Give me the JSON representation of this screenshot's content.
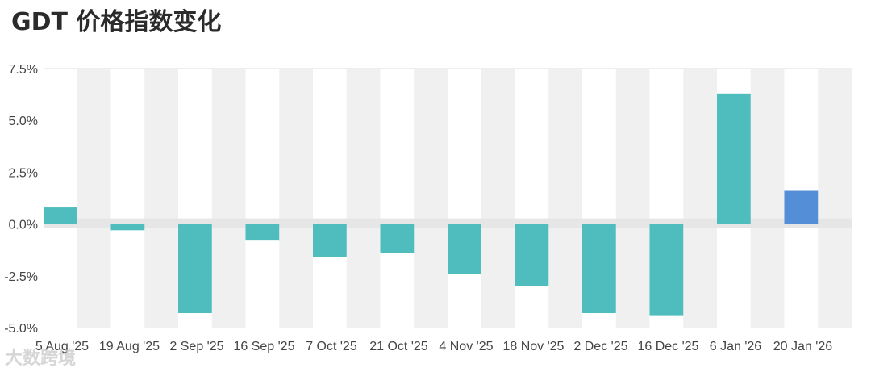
{
  "chart_data": {
    "type": "bar",
    "title": "GDT 价格指数变化",
    "categories": [
      "5 Aug '25",
      "19 Aug '25",
      "2 Sep '25",
      "16 Sep '25",
      "7 Oct '25",
      "21 Oct '25",
      "4 Nov '25",
      "18 Nov '25",
      "2 Dec '25",
      "16 Dec '25",
      "6 Jan '26",
      "20 Jan '26"
    ],
    "values": [
      0.8,
      -0.3,
      -4.3,
      -0.8,
      -1.6,
      -1.4,
      -2.4,
      -3.0,
      -4.3,
      -4.4,
      6.3,
      1.6
    ],
    "yticks": [
      "7.5%",
      "5.0%",
      "2.5%",
      "0.0%",
      "-2.5%",
      "-5.0%"
    ],
    "ylim": [
      -5.0,
      7.5
    ],
    "xlabel": "",
    "ylabel": "",
    "grid": "alternating vertical bands",
    "colors": {
      "bar": "#4fbcbe",
      "highlight": "#548ed6",
      "band": "#f0f0f0",
      "zero_band": "#e6e6e6"
    }
  },
  "watermark": "大数跨境"
}
